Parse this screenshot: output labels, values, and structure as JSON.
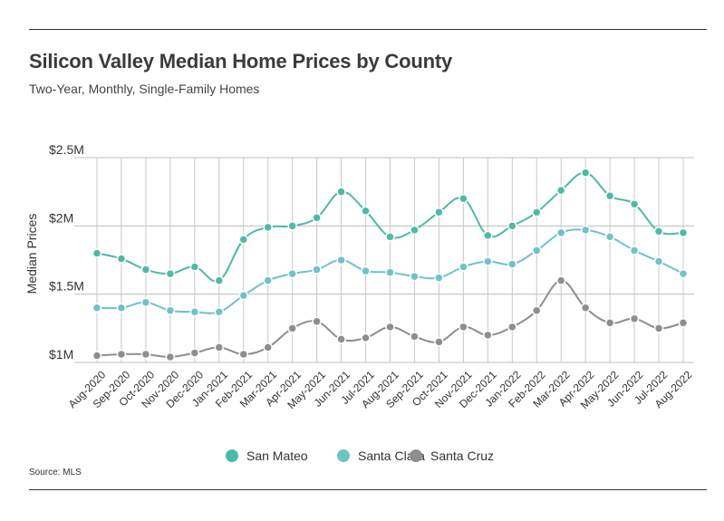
{
  "header": {
    "title": "Silicon Valley Median Home Prices by County",
    "subtitle": "Two-Year, Monthly, Single-Family Homes"
  },
  "footer": {
    "source": "Source:  MLS"
  },
  "chart_data": {
    "type": "line",
    "title": "Silicon Valley Median Home Prices by County",
    "subtitle": "Two-Year, Monthly, Single-Family Homes",
    "ylabel": "Median Prices",
    "xlabel": "",
    "ylim": [
      1000000,
      2500000
    ],
    "yticks": [
      {
        "value": 1000000,
        "label": "$1M"
      },
      {
        "value": 1500000,
        "label": "$1.5M"
      },
      {
        "value": 2000000,
        "label": "$2M"
      },
      {
        "value": 2500000,
        "label": "$2.5M"
      }
    ],
    "grid": true,
    "legend_position": "bottom-center",
    "categories": [
      "Aug-2020",
      "Sep-2020",
      "Oct-2020",
      "Nov-2020",
      "Dec-2020",
      "Jan-2021",
      "Feb-2021",
      "Mar-2021",
      "Apr-2021",
      "May-2021",
      "Jun-2021",
      "Jul-2021",
      "Aug-2021",
      "Sep-2021",
      "Oct-2021",
      "Nov-2021",
      "Dec-2021",
      "Jan-2022",
      "Feb-2022",
      "Mar-2022",
      "Apr-2022",
      "May-2022",
      "Jun-2022",
      "Jul-2022",
      "Aug-2022"
    ],
    "series": [
      {
        "name": "San Mateo",
        "color": "#4dbaa6",
        "values": [
          1800000,
          1760000,
          1680000,
          1650000,
          1700000,
          1600000,
          1900000,
          1990000,
          2000000,
          2060000,
          2250000,
          2110000,
          1920000,
          1970000,
          2100000,
          2200000,
          1930000,
          2000000,
          2100000,
          2260000,
          2390000,
          2220000,
          2160000,
          1960000,
          1950000
        ]
      },
      {
        "name": "Santa Clara",
        "color": "#6fc3c6",
        "values": [
          1400000,
          1400000,
          1440000,
          1380000,
          1370000,
          1370000,
          1490000,
          1600000,
          1650000,
          1680000,
          1750000,
          1670000,
          1660000,
          1630000,
          1620000,
          1700000,
          1740000,
          1720000,
          1820000,
          1950000,
          1970000,
          1920000,
          1820000,
          1740000,
          1650000
        ]
      },
      {
        "name": "Santa Cruz",
        "color": "#8e8e8e",
        "values": [
          1050000,
          1060000,
          1060000,
          1040000,
          1070000,
          1110000,
          1060000,
          1110000,
          1250000,
          1300000,
          1170000,
          1180000,
          1260000,
          1190000,
          1150000,
          1260000,
          1200000,
          1260000,
          1380000,
          1600000,
          1400000,
          1290000,
          1320000,
          1250000,
          1290000
        ]
      }
    ]
  }
}
